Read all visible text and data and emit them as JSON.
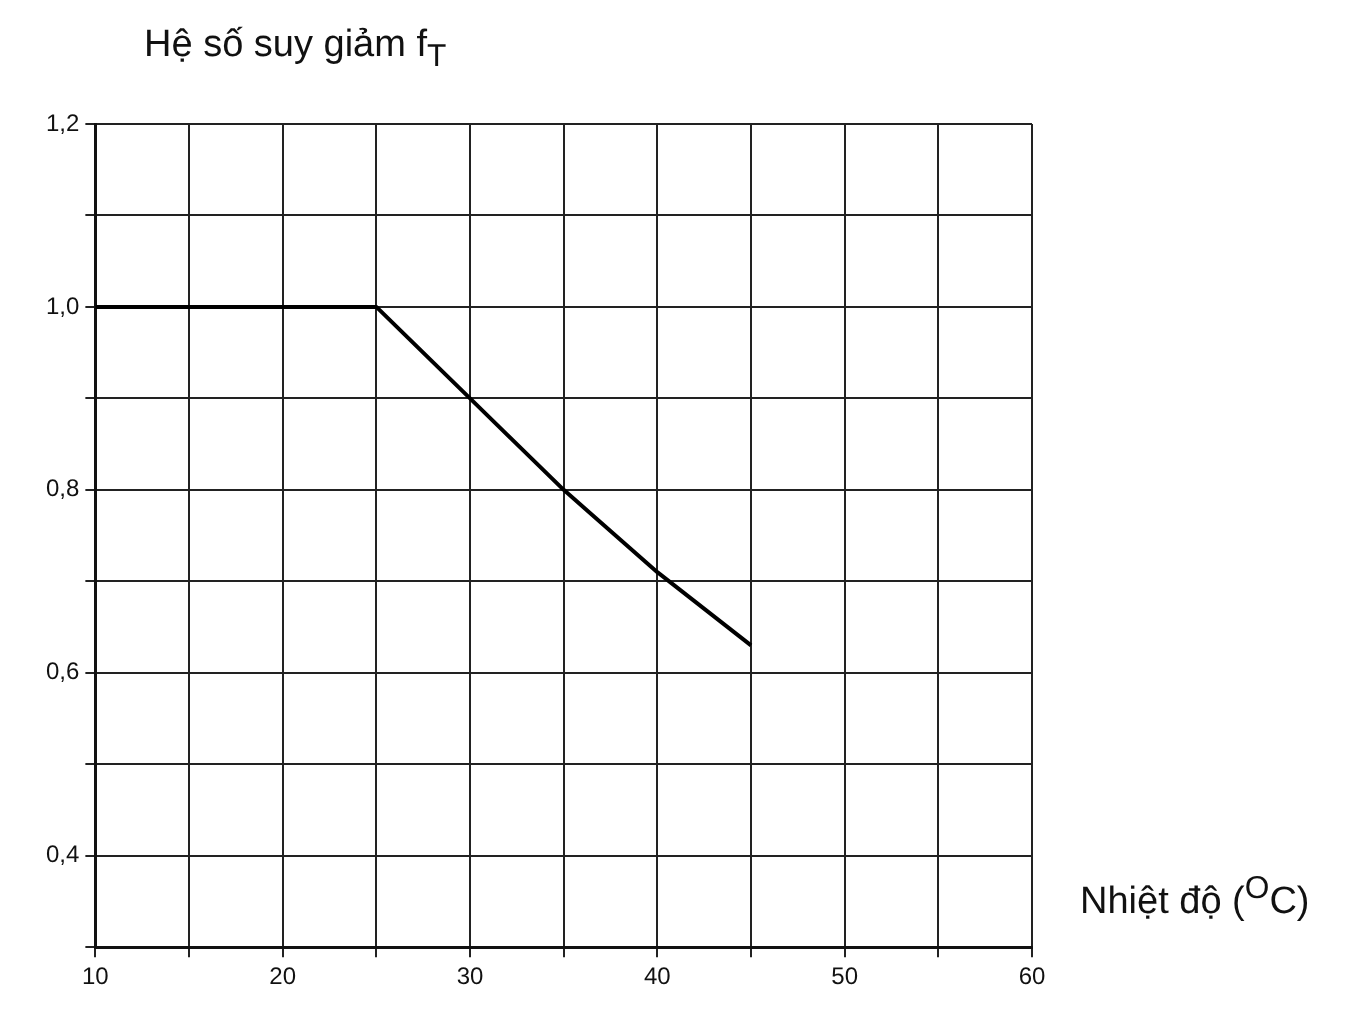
{
  "chart_data": {
    "type": "line",
    "ylabel": "Hệ số suy giảm f$_{T}$",
    "xlabel": "Nhiệt độ ($^{O}$C)",
    "x": [
      10,
      25,
      30,
      35,
      40,
      45
    ],
    "series": [
      {
        "color": "#000000",
        "values": [
          1.0,
          1.0,
          0.9,
          0.8,
          0.71,
          0.63
        ]
      }
    ],
    "xlim": [
      10,
      60
    ],
    "xticks": [
      10,
      {
        "value": 15,
        "label": null
      },
      20,
      {
        "value": 25,
        "label": null
      },
      30,
      {
        "value": 35,
        "label": null
      },
      40,
      {
        "value": 45,
        "label": null
      },
      50,
      {
        "value": 55,
        "label": null
      },
      60
    ],
    "ylim": [
      0.3,
      1.2
    ],
    "yticks": [
      {
        "value": 0.3,
        "label": null
      },
      {
        "value": 0.4,
        "label": "0,4"
      },
      {
        "value": 0.5,
        "label": null
      },
      {
        "value": 0.6,
        "label": "0,6"
      },
      {
        "value": 0.7,
        "label": null
      },
      {
        "value": 0.8,
        "label": "0,8"
      },
      {
        "value": 0.9,
        "label": null
      },
      {
        "value": 1.0,
        "label": "1,0"
      },
      {
        "value": 1.1,
        "label": null
      },
      {
        "value": 1.2,
        "label": "1,2"
      }
    ],
    "grid": true,
    "legend": false,
    "marker": "none",
    "line_style": "solid"
  }
}
